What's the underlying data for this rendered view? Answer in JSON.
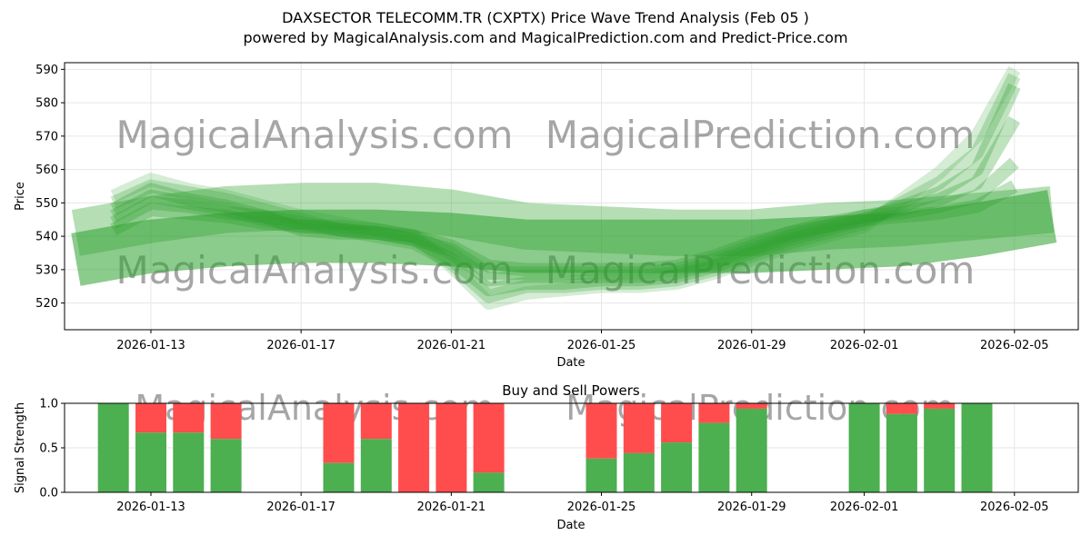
{
  "title_line1": "DAXSECTOR TELECOMM.TR (CXPTX) Price Wave Trend Analysis (Feb 05 )",
  "title_line2": "powered by MagicalAnalysis.com and MagicalPrediction.com and Predict-Price.com",
  "watermarks": [
    "MagicalAnalysis.com",
    "MagicalPrediction.com"
  ],
  "colors": {
    "green_band": "#2ca02c",
    "buy": "#4caf50",
    "sell": "#ff4d4d",
    "grid": "#e6e6e6"
  },
  "chart_data": [
    {
      "type": "area",
      "name": "price-wave",
      "xlabel": "Date",
      "ylabel": "Price",
      "ylim": [
        512,
        592
      ],
      "yticks": [
        520,
        530,
        540,
        550,
        560,
        570,
        580,
        590
      ],
      "x_range_days": [
        -1.3,
        25.7
      ],
      "xticks": [
        {
          "label": "2026-01-13",
          "day": 1
        },
        {
          "label": "2026-01-17",
          "day": 5
        },
        {
          "label": "2026-01-21",
          "day": 9
        },
        {
          "label": "2026-01-25",
          "day": 13
        },
        {
          "label": "2026-01-29",
          "day": 17
        },
        {
          "label": "2026-02-01",
          "day": 20
        },
        {
          "label": "2026-02-05",
          "day": 24
        }
      ],
      "grid": true,
      "bands": [
        {
          "x": [
            -1.0,
            1.0,
            3.0,
            5.0,
            7.0,
            9.0,
            11.0,
            13.0,
            15.0,
            17.0,
            19.0,
            21.0,
            23.0,
            25.0
          ],
          "y": [
            533,
            537,
            539,
            540,
            540,
            539,
            537,
            537,
            537,
            537,
            538,
            539,
            542,
            546
          ],
          "width": 16,
          "opacity": 0.55
        },
        {
          "x": [
            -1.0,
            1.0,
            3.0,
            5.0,
            7.0,
            9.0,
            11.0,
            13.0,
            15.0,
            17.0,
            19.0,
            21.0,
            23.0,
            25.0
          ],
          "y": [
            541,
            545,
            548,
            549,
            549,
            547,
            543,
            542,
            541,
            541,
            543,
            544,
            546,
            548
          ],
          "width": 14,
          "opacity": 0.35
        },
        {
          "x": [
            0,
            1,
            2,
            3,
            4,
            5,
            6,
            7,
            8,
            9,
            10,
            11,
            12,
            13,
            14,
            15,
            16,
            17,
            18,
            19,
            20,
            21,
            22,
            23,
            24
          ],
          "y": [
            548,
            554,
            551,
            549,
            546,
            542,
            541,
            541,
            539,
            533,
            524,
            526,
            526,
            527,
            527,
            528,
            531,
            535,
            539,
            542,
            545,
            549,
            553,
            560,
            585
          ],
          "width": 4,
          "opacity": 0.3
        },
        {
          "x": [
            0,
            1,
            2,
            3,
            4,
            5,
            6,
            7,
            8,
            9,
            10,
            11,
            12,
            13,
            14,
            15,
            16,
            17,
            18,
            19,
            20,
            21,
            22,
            23,
            24
          ],
          "y": [
            546,
            552,
            550,
            548,
            545,
            543,
            543,
            542,
            540,
            535,
            527,
            528,
            528,
            528,
            528,
            529,
            532,
            536,
            540,
            543,
            546,
            548,
            551,
            556,
            575
          ],
          "width": 4,
          "opacity": 0.3
        },
        {
          "x": [
            0,
            1,
            2,
            3,
            4,
            5,
            6,
            7,
            8,
            9,
            10,
            11,
            12,
            13,
            14,
            15,
            16,
            17,
            18,
            19,
            20,
            21,
            22,
            23,
            24
          ],
          "y": [
            550,
            555,
            553,
            551,
            548,
            545,
            542,
            540,
            538,
            532,
            522,
            525,
            525,
            526,
            526,
            527,
            530,
            534,
            538,
            541,
            544,
            550,
            556,
            565,
            588
          ],
          "width": 4,
          "opacity": 0.25
        },
        {
          "x": [
            0,
            1,
            2,
            3,
            4,
            5,
            6,
            7,
            8,
            9,
            10,
            11,
            12,
            13,
            14,
            15,
            16,
            17,
            18,
            19,
            20,
            21,
            22,
            23,
            24
          ],
          "y": [
            544,
            550,
            549,
            547,
            546,
            544,
            542,
            541,
            539,
            536,
            529,
            529,
            529,
            529,
            529,
            530,
            533,
            537,
            541,
            544,
            546,
            547,
            549,
            552,
            562
          ],
          "width": 4,
          "opacity": 0.3
        },
        {
          "x": [
            0,
            1,
            2,
            3,
            4,
            5,
            6,
            7,
            8,
            9,
            10,
            11,
            12,
            13,
            14,
            15,
            16,
            17,
            18,
            19,
            20,
            21,
            22,
            23,
            24
          ],
          "y": [
            552,
            557,
            554,
            552,
            549,
            546,
            544,
            542,
            540,
            531,
            520,
            523,
            524,
            525,
            525,
            526,
            529,
            533,
            537,
            540,
            543,
            551,
            559,
            570,
            590
          ],
          "width": 4,
          "opacity": 0.2
        },
        {
          "x": [
            0,
            1,
            2,
            3,
            4,
            5,
            6,
            7,
            8,
            9,
            10,
            11,
            12,
            13,
            14,
            15,
            16,
            17,
            18,
            19,
            20,
            21,
            22,
            23,
            24
          ],
          "y": [
            542,
            548,
            547,
            546,
            544,
            543,
            542,
            541,
            540,
            537,
            531,
            530,
            530,
            530,
            530,
            531,
            534,
            538,
            541,
            543,
            545,
            546,
            547,
            549,
            555
          ],
          "width": 4,
          "opacity": 0.3
        }
      ]
    },
    {
      "type": "bar",
      "name": "buy-sell-powers",
      "title": "Buy and Sell Powers",
      "xlabel": "Date",
      "ylabel": "Signal Strength",
      "ylim": [
        0,
        1
      ],
      "yticks": [
        "0.0",
        "0.5",
        "1.0"
      ],
      "x_range_days": [
        -1.3,
        25.7
      ],
      "xticks": [
        {
          "label": "2026-01-13",
          "day": 1
        },
        {
          "label": "2026-01-17",
          "day": 5
        },
        {
          "label": "2026-01-21",
          "day": 9
        },
        {
          "label": "2026-01-25",
          "day": 13
        },
        {
          "label": "2026-01-29",
          "day": 17
        },
        {
          "label": "2026-02-01",
          "day": 20
        },
        {
          "label": "2026-02-05",
          "day": 24
        }
      ],
      "grid": true,
      "bars": [
        {
          "day": 0,
          "buy": 1.0
        },
        {
          "day": 1,
          "buy": 0.67
        },
        {
          "day": 2,
          "buy": 0.67
        },
        {
          "day": 3,
          "buy": 0.6
        },
        {
          "day": 6,
          "buy": 0.33
        },
        {
          "day": 7,
          "buy": 0.6
        },
        {
          "day": 8,
          "buy": 0.0
        },
        {
          "day": 9,
          "buy": 0.0
        },
        {
          "day": 10,
          "buy": 0.22
        },
        {
          "day": 13,
          "buy": 0.38
        },
        {
          "day": 14,
          "buy": 0.44
        },
        {
          "day": 15,
          "buy": 0.56
        },
        {
          "day": 16,
          "buy": 0.78
        },
        {
          "day": 17,
          "buy": 0.94
        },
        {
          "day": 20,
          "buy": 1.0
        },
        {
          "day": 21,
          "buy": 0.88
        },
        {
          "day": 22,
          "buy": 0.94
        },
        {
          "day": 23,
          "buy": 1.0
        }
      ]
    }
  ]
}
